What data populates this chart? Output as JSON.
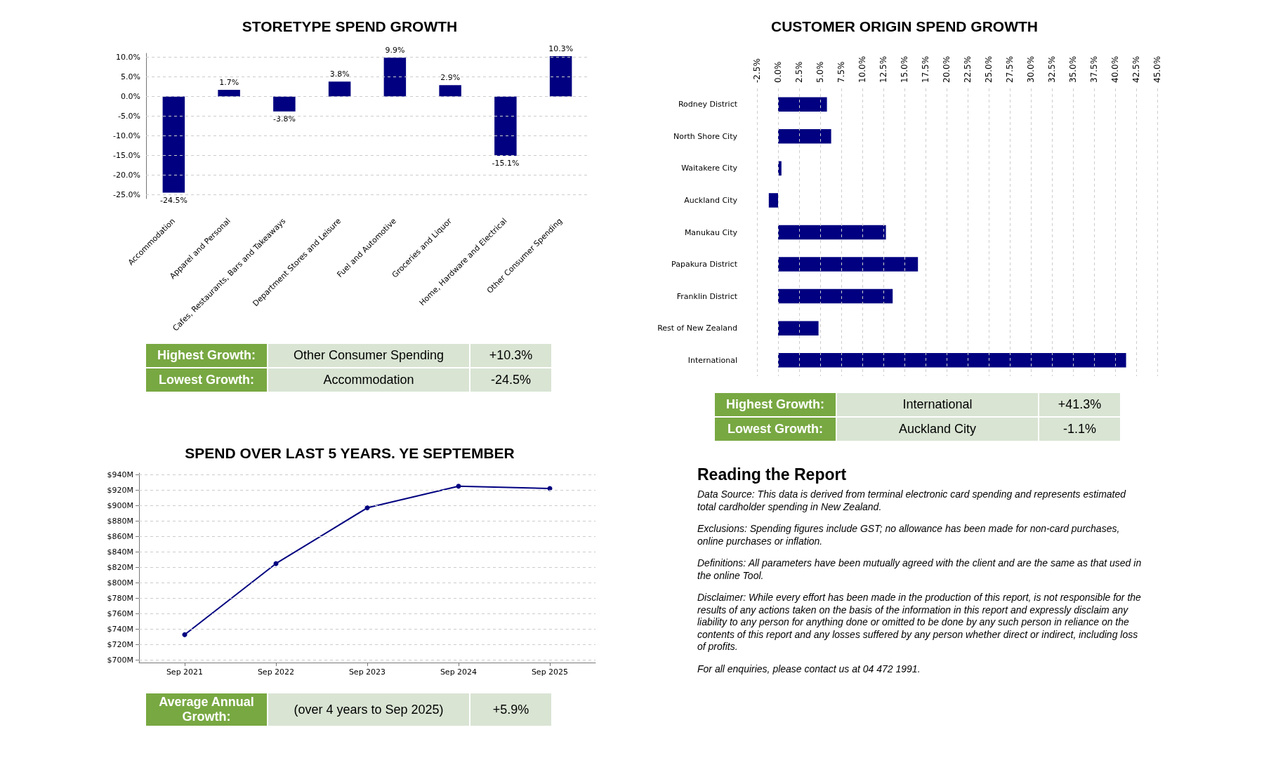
{
  "chart_data": [
    {
      "type": "bar",
      "title": "STORETYPE SPEND GROWTH",
      "categories": [
        "Accommodation",
        "Apparel and Personal",
        "Cafes, Restaurants, Bars and Takeaways",
        "Department Stores and Leisure",
        "Fuel and Automotive",
        "Groceries and Liquor",
        "Home, Hardware and Electrical",
        "Other Consumer Spending"
      ],
      "values": [
        -24.5,
        1.7,
        -3.8,
        3.8,
        9.9,
        2.9,
        -15.1,
        10.3
      ],
      "value_labels": [
        "-24.5%",
        "1.7%",
        "-3.8%",
        "3.8%",
        "9.9%",
        "2.9%",
        "-15.1%",
        "10.3%"
      ],
      "color": "#000080",
      "ylim": [
        -26,
        11
      ],
      "yticks": [
        {
          "value": -25,
          "label": "-25.0%"
        },
        {
          "value": -20,
          "label": "-20.0%"
        },
        {
          "value": -15,
          "label": "-15.0%"
        },
        {
          "value": -10,
          "label": "-10.0%"
        },
        {
          "value": -5,
          "label": "-5.0%"
        },
        {
          "value": 0,
          "label": "0.0%"
        },
        {
          "value": 5,
          "label": "5.0%"
        },
        {
          "value": 10,
          "label": "10.0%"
        }
      ],
      "grid": "y",
      "annotations": [
        "Highest Growth:",
        "Other Consumer Spending",
        "+10.3%",
        "Lowest Growth:",
        "Accommodation",
        "-24.5%"
      ]
    },
    {
      "type": "bar",
      "orientation": "horizontal",
      "title": "CUSTOMER ORIGIN SPEND GROWTH",
      "categories": [
        "Rodney District",
        "North Shore City",
        "Waitakere City",
        "Auckland City",
        "Manukau City",
        "Papakura District",
        "Franklin District",
        "Rest of New Zealand",
        "International"
      ],
      "values": [
        5.8,
        6.3,
        0.4,
        -1.1,
        12.8,
        16.6,
        13.6,
        4.8,
        41.3
      ],
      "color": "#000080",
      "xlim": [
        -2.5,
        45
      ],
      "xticks": [
        {
          "value": -2.5,
          "label": "-2.5%"
        },
        {
          "value": 0,
          "label": "0.0%"
        },
        {
          "value": 2.5,
          "label": "2.5%"
        },
        {
          "value": 5,
          "label": "5.0%"
        },
        {
          "value": 7.5,
          "label": "7.5%"
        },
        {
          "value": 10,
          "label": "10.0%"
        },
        {
          "value": 12.5,
          "label": "12.5%"
        },
        {
          "value": 15,
          "label": "15.0%"
        },
        {
          "value": 17.5,
          "label": "17.5%"
        },
        {
          "value": 20,
          "label": "20.0%"
        },
        {
          "value": 22.5,
          "label": "22.5%"
        },
        {
          "value": 25,
          "label": "25.0%"
        },
        {
          "value": 27.5,
          "label": "27.5%"
        },
        {
          "value": 30,
          "label": "30.0%"
        },
        {
          "value": 32.5,
          "label": "32.5%"
        },
        {
          "value": 35,
          "label": "35.0%"
        },
        {
          "value": 37.5,
          "label": "37.5%"
        },
        {
          "value": 40,
          "label": "40.0%"
        },
        {
          "value": 42.5,
          "label": "42.5%"
        },
        {
          "value": 45,
          "label": "45.0%"
        }
      ],
      "grid": "x",
      "annotations": [
        "Highest Growth:",
        "International",
        "+41.3%",
        "Lowest Growth:",
        "Auckland City",
        "-1.1%"
      ]
    },
    {
      "type": "line",
      "title": "SPEND OVER LAST 5 YEARS. YE SEPTEMBER",
      "categories": [
        "Sep 2021",
        "Sep 2022",
        "Sep 2023",
        "Sep 2024",
        "Sep 2025"
      ],
      "values": [
        733,
        825,
        897,
        925,
        922
      ],
      "color": "#000080",
      "marker": "circle",
      "ylim": [
        697,
        942
      ],
      "yticks": [
        {
          "value": 700,
          "label": "$700M"
        },
        {
          "value": 720,
          "label": "$720M"
        },
        {
          "value": 740,
          "label": "$740M"
        },
        {
          "value": 760,
          "label": "$760M"
        },
        {
          "value": 780,
          "label": "$780M"
        },
        {
          "value": 800,
          "label": "$800M"
        },
        {
          "value": 820,
          "label": "$820M"
        },
        {
          "value": 840,
          "label": "$840M"
        },
        {
          "value": 860,
          "label": "$860M"
        },
        {
          "value": 880,
          "label": "$880M"
        },
        {
          "value": 900,
          "label": "$900M"
        },
        {
          "value": 920,
          "label": "$920M"
        },
        {
          "value": 940,
          "label": "$940M"
        }
      ],
      "grid": "y",
      "annotations": [
        "Average Annual Growth:",
        "(over 4 years to Sep 2025)",
        "+5.9%"
      ]
    },
    {
      "type": "other",
      "title": "Reading the Report",
      "annotations": [
        "Data Source: This data is derived from terminal electronic card spending and represents estimated total cardholder spending in New Zealand.",
        "Exclusions: Spending figures include GST; no allowance has been made for non-card purchases, online purchases or inflation.",
        "Definitions: All parameters have been mutually agreed with the client and are the same as that used in the online Tool.",
        "Disclaimer: While every effort has been made in the production of this report, is not responsible for the results of any actions taken on the basis of the information in this report and expressly disclaim any liability to any person for anything done or omitted to be done by any such person in reliance on the contents of this report and any losses suffered by any person whether direct or indirect, including loss of profits.",
        "For all enquiries, please contact us at 04 472 1991."
      ]
    }
  ]
}
